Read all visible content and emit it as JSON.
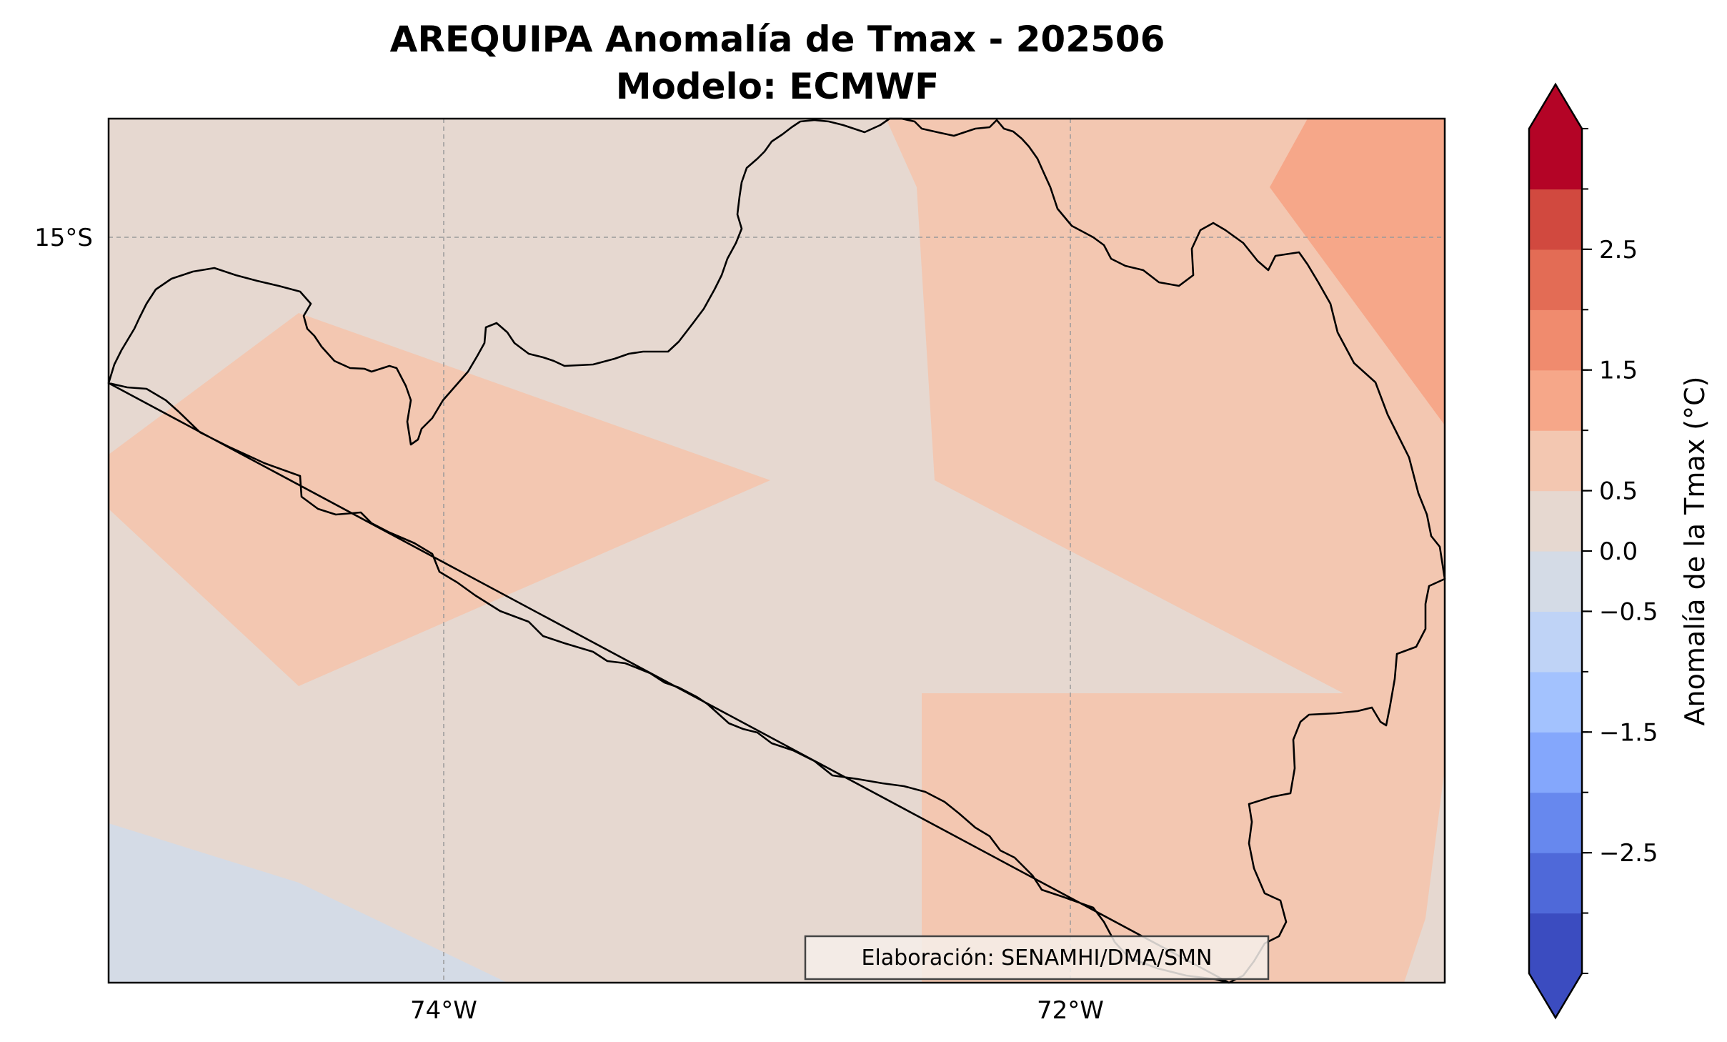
{
  "title": {
    "line1": "AREQUIPA Anomalía de Tmax - 202506",
    "line2": "Modelo: ECMWF"
  },
  "map": {
    "lon_range": [
      -75.07,
      -70.78
    ],
    "lat_range": [
      -17.84,
      -14.61
    ],
    "lon_ticks": [
      {
        "value": -74,
        "label": "74°W"
      },
      {
        "value": -72,
        "label": "72°W"
      }
    ],
    "lat_ticks": [
      {
        "value": -15,
        "label": "15°S"
      }
    ],
    "gridlines": true,
    "credit": "Elaboración: SENAMHI/DMA/SMN"
  },
  "colorbar": {
    "label": "Anomalía de la Tmax (°C)",
    "range": [
      -3.5,
      3.5
    ],
    "step": 0.5,
    "extend": "both",
    "levels": [
      -3.5,
      -3.0,
      -2.5,
      -2.0,
      -1.5,
      -1.0,
      -0.5,
      0.0,
      0.5,
      1.0,
      1.5,
      2.0,
      2.5,
      3.0,
      3.5
    ],
    "tick_values": [
      -2.5,
      -1.5,
      -0.5,
      0.0,
      0.5,
      1.5,
      2.5
    ],
    "tick_labels": [
      "−2.5",
      "−1.5",
      "−0.5",
      "0.0",
      "0.5",
      "1.5",
      "2.5"
    ],
    "colors": [
      "#3b4cc0",
      "#4f69d9",
      "#6788ee",
      "#84a7fc",
      "#a3c2fe",
      "#bfd3f6",
      "#d4dbe6",
      "#e6d8d0",
      "#f3c7b1",
      "#f6a789",
      "#f08b6e",
      "#e36c55",
      "#d1493f",
      "#b40426"
    ],
    "under_color": "#3b4cc0",
    "over_color": "#b40426"
  }
}
